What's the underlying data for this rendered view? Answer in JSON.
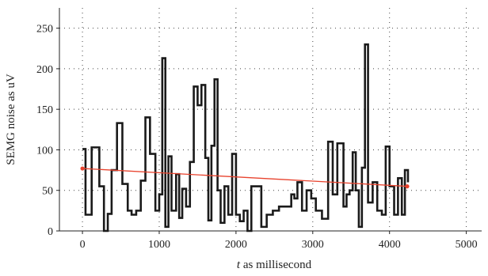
{
  "chart_data": {
    "type": "line",
    "xlabel_italic": "t",
    "xlabel_rest": " as millisecond",
    "ylabel": "SEMG noise as uV",
    "xlim": [
      -300,
      5200
    ],
    "ylim": [
      0,
      275
    ],
    "xticks": [
      "0",
      "1000",
      "2000",
      "3000",
      "4000",
      "5000"
    ],
    "xtick_values": [
      0,
      1000,
      2000,
      3000,
      4000,
      5000
    ],
    "yticks": [
      "0",
      "50",
      "100",
      "150",
      "200",
      "250"
    ],
    "ytick_values": [
      0,
      50,
      100,
      150,
      200,
      250
    ],
    "grid": true,
    "series": [
      {
        "style": "step",
        "color": "#1a1a1a",
        "x": [
          0,
          40,
          120,
          220,
          280,
          330,
          380,
          450,
          520,
          590,
          640,
          700,
          760,
          820,
          880,
          950,
          1000,
          1040,
          1080,
          1120,
          1160,
          1220,
          1260,
          1300,
          1350,
          1400,
          1450,
          1500,
          1550,
          1600,
          1640,
          1680,
          1720,
          1760,
          1800,
          1850,
          1900,
          1950,
          2000,
          2050,
          2100,
          2150,
          2200,
          2260,
          2330,
          2400,
          2480,
          2560,
          2640,
          2720,
          2760,
          2800,
          2860,
          2920,
          2980,
          3040,
          3120,
          3200,
          3260,
          3320,
          3400,
          3440,
          3480,
          3520,
          3560,
          3600,
          3640,
          3680,
          3720,
          3780,
          3840,
          3900,
          3950,
          4000,
          4060,
          4110,
          4160,
          4200,
          4240
        ],
        "y": [
          101,
          20,
          103,
          55,
          0,
          21,
          75,
          133,
          58,
          25,
          20,
          25,
          62,
          140,
          95,
          25,
          45,
          213,
          5,
          92,
          25,
          70,
          16,
          52,
          30,
          85,
          178,
          155,
          180,
          90,
          13,
          105,
          187,
          50,
          10,
          55,
          20,
          95,
          20,
          12,
          25,
          0,
          55,
          55,
          5,
          20,
          25,
          30,
          30,
          45,
          40,
          60,
          25,
          50,
          40,
          25,
          15,
          110,
          45,
          108,
          30,
          45,
          50,
          97,
          50,
          5,
          78,
          230,
          35,
          60,
          25,
          20,
          104,
          55,
          20,
          65,
          20,
          75,
          60
        ]
      },
      {
        "style": "line-markers",
        "color": "#e8432e",
        "x": [
          0,
          4230
        ],
        "y": [
          77,
          55
        ]
      }
    ]
  }
}
